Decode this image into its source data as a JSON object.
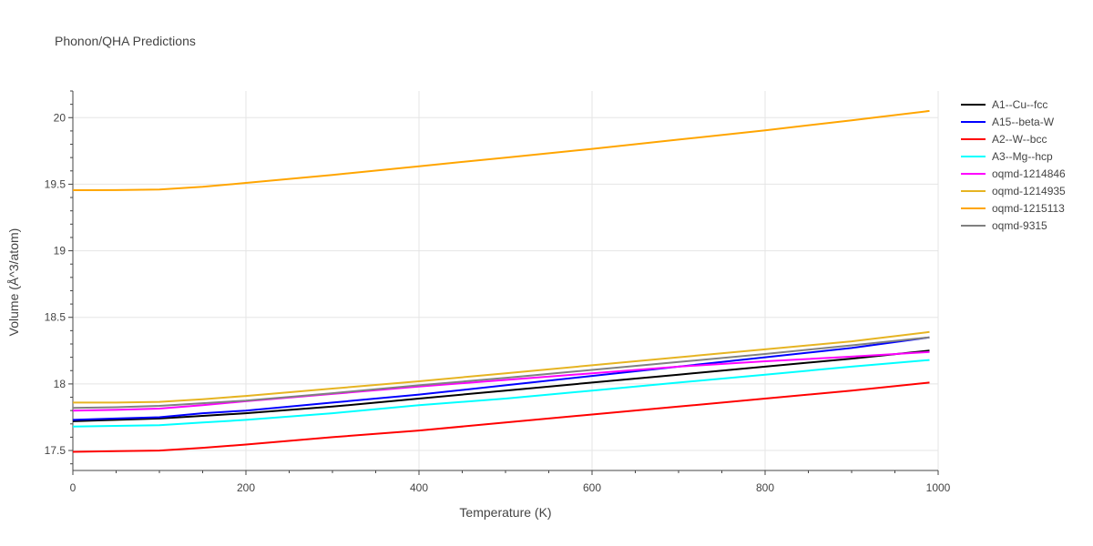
{
  "chart_data": {
    "type": "line",
    "title": "Phonon/QHA Predictions",
    "xlabel": "Temperature (K)",
    "ylabel": "Volume (Å^3/atom)",
    "xlim": [
      0,
      1000
    ],
    "ylim": [
      17.35,
      20.2
    ],
    "xticks": [
      0,
      200,
      400,
      600,
      800,
      1000
    ],
    "yticks": [
      17.5,
      18,
      18.5,
      19,
      19.5,
      20
    ],
    "xtick_labels": [
      "0",
      "200",
      "400",
      "600",
      "800",
      "1000"
    ],
    "ytick_labels": [
      "17.5",
      "18",
      "18.5",
      "19",
      "19.5",
      "20"
    ],
    "grid": true,
    "legend_position": "right",
    "x": [
      0,
      50,
      100,
      150,
      200,
      300,
      400,
      500,
      600,
      700,
      800,
      900,
      990
    ],
    "series": [
      {
        "name": "A1--Cu--fcc",
        "color": "#000000",
        "values": [
          17.72,
          17.73,
          17.74,
          17.76,
          17.78,
          17.83,
          17.89,
          17.95,
          18.01,
          18.07,
          18.13,
          18.19,
          18.25
        ]
      },
      {
        "name": "A15--beta-W",
        "color": "#0000ff",
        "values": [
          17.73,
          17.74,
          17.75,
          17.78,
          17.8,
          17.86,
          17.92,
          17.99,
          18.06,
          18.13,
          18.2,
          18.27,
          18.35
        ]
      },
      {
        "name": "A2--W--bcc",
        "color": "#ff0000",
        "values": [
          17.49,
          17.495,
          17.5,
          17.52,
          17.545,
          17.6,
          17.65,
          17.71,
          17.77,
          17.83,
          17.89,
          17.95,
          18.01
        ]
      },
      {
        "name": "A3--Mg--hcp",
        "color": "#00ffff",
        "values": [
          17.68,
          17.685,
          17.69,
          17.71,
          17.73,
          17.78,
          17.84,
          17.89,
          17.95,
          18.01,
          18.07,
          18.13,
          18.18
        ]
      },
      {
        "name": "oqmd-1214846",
        "color": "#ff00ff",
        "values": [
          17.8,
          17.805,
          17.815,
          17.84,
          17.87,
          17.925,
          17.98,
          18.03,
          18.08,
          18.13,
          18.17,
          18.205,
          18.24
        ]
      },
      {
        "name": "oqmd-1214935",
        "color": "#e6b422",
        "values": [
          17.86,
          17.86,
          17.865,
          17.885,
          17.91,
          17.965,
          18.02,
          18.08,
          18.14,
          18.2,
          18.26,
          18.32,
          18.39
        ]
      },
      {
        "name": "oqmd-1215113",
        "color": "#ffa500",
        "values": [
          19.455,
          19.456,
          19.46,
          19.48,
          19.51,
          19.57,
          19.635,
          19.7,
          19.765,
          19.835,
          19.905,
          19.98,
          20.05
        ]
      },
      {
        "name": "oqmd-9315",
        "color": "#808080",
        "values": [
          17.82,
          17.825,
          17.835,
          17.855,
          17.875,
          17.93,
          17.99,
          18.045,
          18.105,
          18.165,
          18.225,
          18.29,
          18.35
        ]
      }
    ]
  }
}
